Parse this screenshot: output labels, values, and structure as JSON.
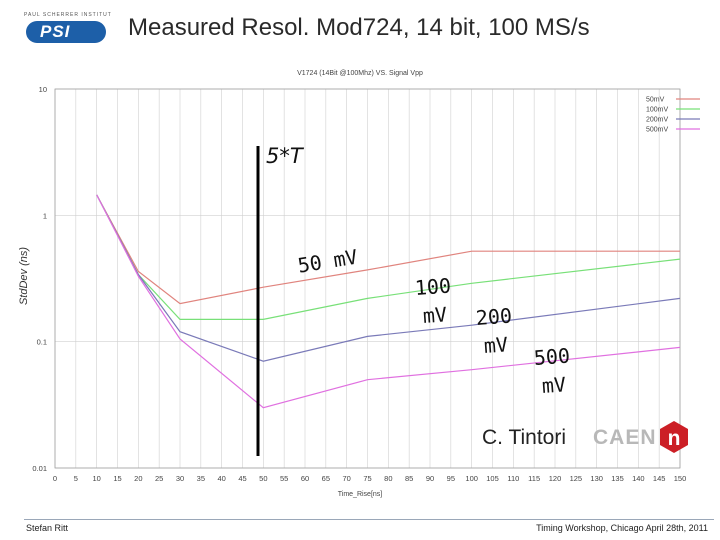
{
  "header": {
    "title": "Measured Resol. Mod724, 14 bit, 100 MS/s",
    "logo_top_text": "PAUL SCHERRER INSTITUT",
    "logo_text": "PSI"
  },
  "annotations": {
    "five_t": "5*T",
    "mv50": "50 mV",
    "mv100_a": "100",
    "mv100_b": "mV",
    "mv200_a": "200",
    "mv200_b": "mV",
    "mv500_a": "500",
    "mv500_b": "mV",
    "author": "C. Tintori",
    "brand": "CAEN",
    "brand_mark": "n"
  },
  "footer": {
    "left": "Stefan Ritt",
    "right": "Timing Workshop, Chicago April 28th, 2011"
  },
  "colors": {
    "s50": "#e0847e",
    "s100": "#78e078",
    "s200": "#7a7ab8",
    "s500": "#e070e0",
    "grid": "#d0d0d0",
    "marker": "#000000",
    "caen_red": "#cc1f26"
  },
  "chart_data": {
    "type": "line",
    "title": "V1724 (14Bit @100Mhz) VS. Signal Vpp",
    "xlabel": "Time_Rise[ns]",
    "ylabel": "StdDev (ns)",
    "yscale": "log",
    "xlim": [
      0,
      150
    ],
    "ylim": [
      0.01,
      10
    ],
    "x_ticks": [
      0,
      5,
      10,
      15,
      20,
      25,
      30,
      35,
      40,
      45,
      50,
      55,
      60,
      65,
      70,
      75,
      80,
      85,
      90,
      95,
      100,
      105,
      110,
      115,
      120,
      125,
      130,
      135,
      140,
      145,
      150
    ],
    "y_ticks": [
      0.01,
      0.1,
      1,
      10
    ],
    "y_tick_labels": [
      "0.01",
      "0.1",
      "1",
      "10"
    ],
    "legend_position": "top-right",
    "marker_line_x": 50,
    "series": [
      {
        "name": "50mV",
        "color": "#e0847e",
        "x": [
          10,
          20,
          30,
          50,
          75,
          100,
          150
        ],
        "y": [
          1.45,
          0.36,
          0.2,
          0.27,
          0.37,
          0.52,
          0.52
        ]
      },
      {
        "name": "100mV",
        "color": "#78e078",
        "x": [
          10,
          20,
          30,
          50,
          75,
          100,
          150
        ],
        "y": [
          1.45,
          0.34,
          0.15,
          0.15,
          0.22,
          0.29,
          0.45
        ]
      },
      {
        "name": "200mV",
        "color": "#7a7ab8",
        "x": [
          10,
          20,
          30,
          50,
          75,
          100,
          150
        ],
        "y": [
          1.45,
          0.34,
          0.12,
          0.07,
          0.11,
          0.135,
          0.22
        ]
      },
      {
        "name": "500mV",
        "color": "#e070e0",
        "x": [
          10,
          20,
          30,
          50,
          75,
          100,
          150
        ],
        "y": [
          1.45,
          0.33,
          0.105,
          0.03,
          0.05,
          0.06,
          0.09
        ]
      }
    ]
  }
}
